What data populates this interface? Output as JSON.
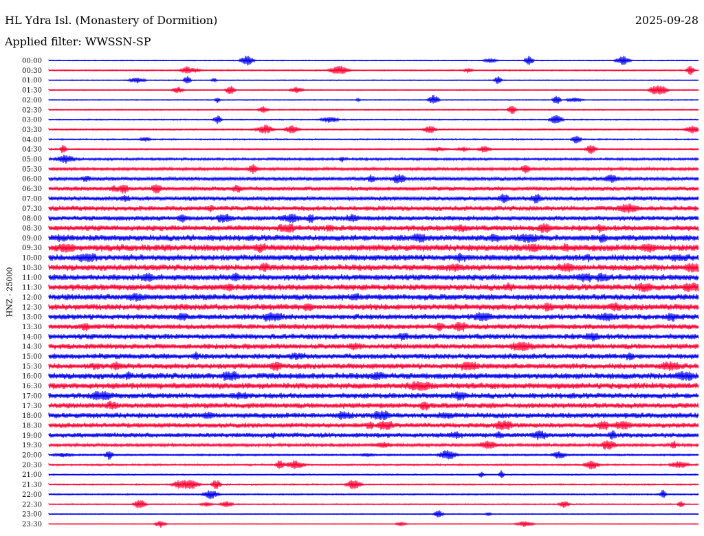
{
  "header": {
    "station": "HL Ydra Isl. (Monastery of Dormition)",
    "date": "2025-09-28",
    "filter": "Applied filter: WWSSN-SP"
  },
  "chart_data": {
    "type": "helicorder",
    "ylabel": "HNZ - 25000",
    "trace_colors": [
      "#0000ee",
      "#ff0033"
    ],
    "row_labels": [
      "00:00",
      "00:30",
      "01:00",
      "01:30",
      "02:00",
      "02:30",
      "03:00",
      "03:30",
      "04:00",
      "04:30",
      "05:00",
      "05:30",
      "06:00",
      "06:30",
      "07:00",
      "07:30",
      "08:00",
      "08:30",
      "09:00",
      "09:30",
      "10:00",
      "10:30",
      "11:00",
      "11:30",
      "12:00",
      "12:30",
      "13:00",
      "13:30",
      "14:00",
      "14:30",
      "15:00",
      "15:30",
      "16:00",
      "16:30",
      "17:00",
      "17:30",
      "18:00",
      "18:30",
      "19:00",
      "19:30",
      "20:00",
      "20:30",
      "21:00",
      "21:30",
      "22:00",
      "22:30",
      "23:00",
      "23:30"
    ],
    "relative_noise_amplitude": [
      0.8,
      1,
      0.8,
      0.8,
      0.8,
      1,
      1,
      1.2,
      1.2,
      1.2,
      2,
      2.5,
      3,
      3.5,
      3.5,
      4,
      4,
      4.5,
      5,
      5.5,
      5,
      5,
      5,
      5,
      5,
      5,
      4.5,
      4.5,
      4.5,
      4.5,
      4.5,
      4.5,
      5,
      5,
      4.5,
      4.5,
      4.5,
      4,
      4,
      2.5,
      1.5,
      1.5,
      1.2,
      1.2,
      1.2,
      1,
      0.8,
      0.6
    ]
  }
}
